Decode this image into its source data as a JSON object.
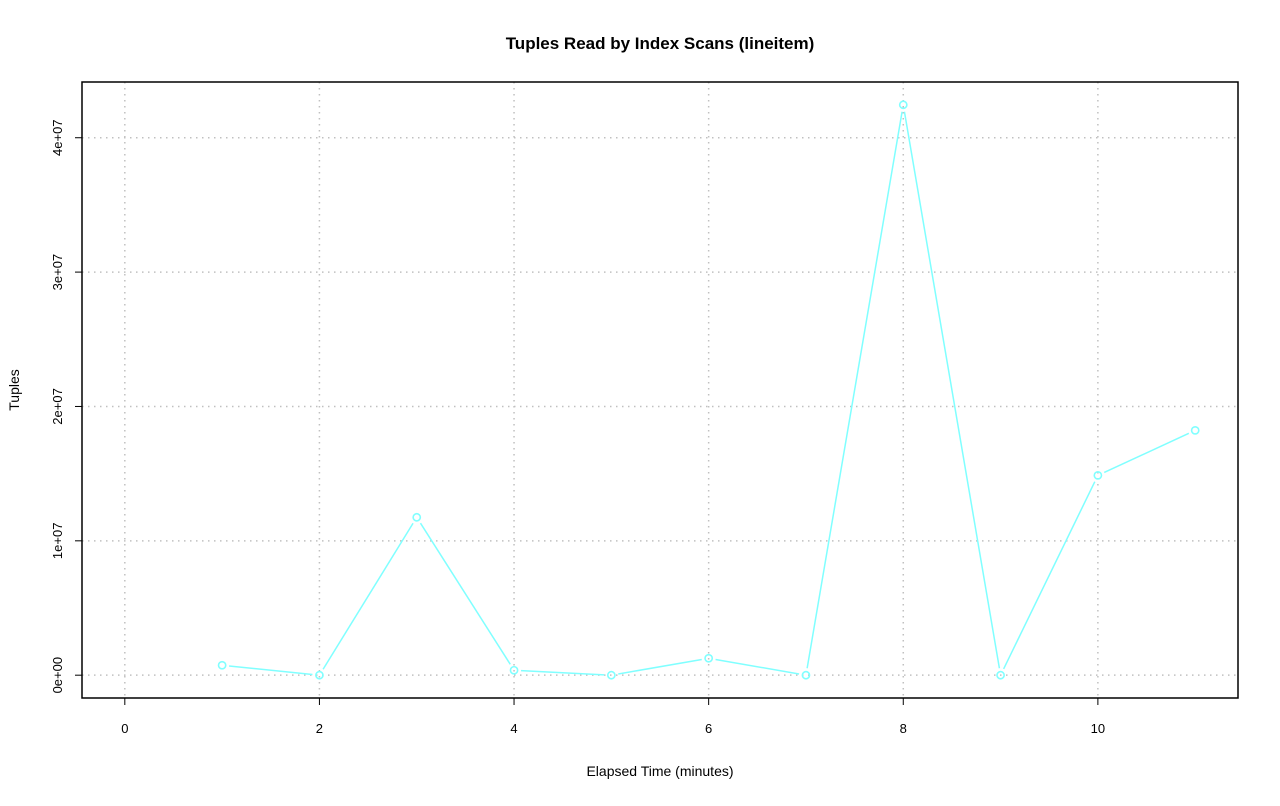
{
  "chart_data": {
    "type": "line",
    "title": "Tuples Read by Index Scans (lineitem)",
    "xlabel": "Elapsed Time (minutes)",
    "ylabel": "Tuples",
    "xlim": [
      0,
      11
    ],
    "ylim": [
      0,
      42450000
    ],
    "x_ticks": [
      0,
      2,
      4,
      6,
      8,
      10
    ],
    "x_tick_labels": [
      "0",
      "2",
      "4",
      "6",
      "8",
      "10"
    ],
    "y_ticks": [
      0,
      10000000,
      20000000,
      30000000,
      40000000
    ],
    "y_tick_labels": [
      "0e+00",
      "1e+07",
      "2e+07",
      "3e+07",
      "4e+07"
    ],
    "grid": true,
    "series": [
      {
        "color": "#80ffff",
        "marker": "open-circle",
        "x": [
          1,
          2,
          3,
          4,
          5,
          6,
          7,
          8,
          9,
          10,
          11
        ],
        "y": [
          740000,
          0,
          11750000,
          370000,
          0,
          1260000,
          0,
          42450000,
          0,
          14870000,
          18220000
        ]
      }
    ]
  }
}
